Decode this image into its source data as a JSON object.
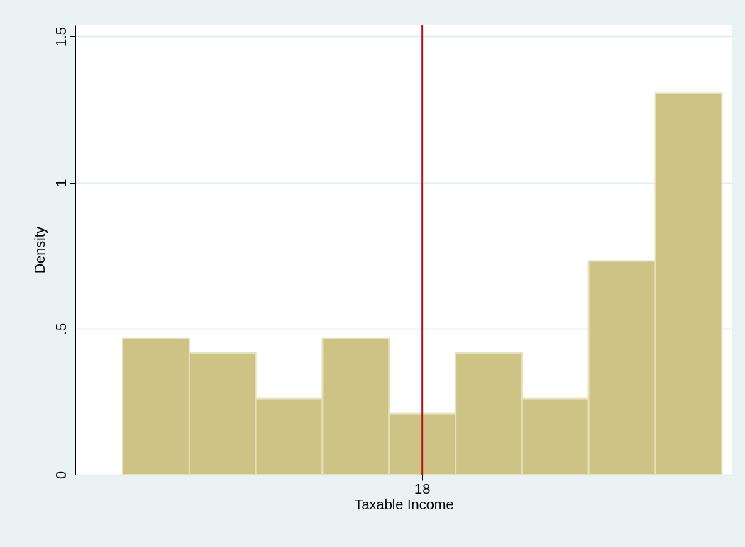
{
  "chart_data": {
    "type": "bar",
    "xlabel": "Taxable Income",
    "ylabel": "Density",
    "categories": [
      null,
      null,
      null,
      null,
      "18",
      null,
      null,
      null,
      null
    ],
    "values": [
      0.466,
      0.417,
      0.26,
      0.466,
      0.209,
      0.417,
      0.26,
      0.731,
      1.306
    ],
    "color": "#cdc385",
    "ylim": [
      0,
      1.54
    ],
    "yticks": [
      0,
      {
        "value": 0.5,
        "label": ".5"
      },
      1,
      1.5
    ],
    "grid": "y",
    "ref_lines": [
      {
        "axis": "x",
        "value": "18",
        "color": "#b5121b"
      }
    ]
  }
}
